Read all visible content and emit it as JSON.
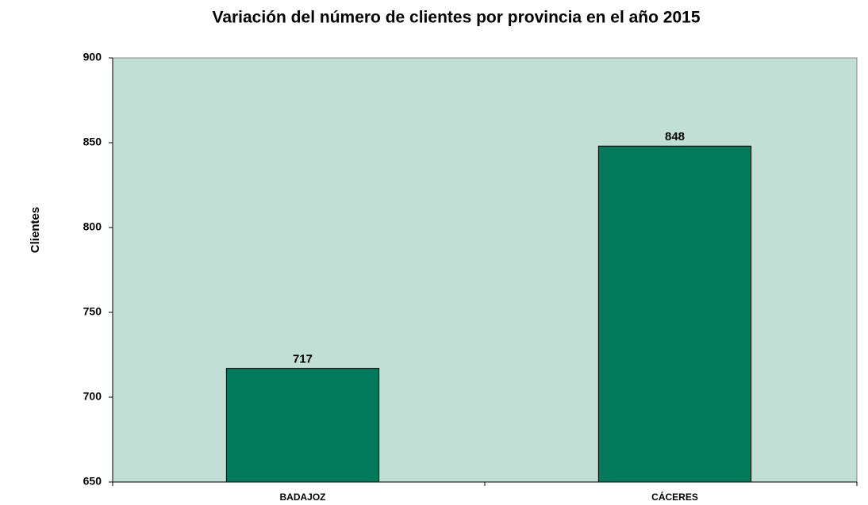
{
  "chart_data": {
    "type": "bar",
    "title": "Variación del número de clientes por provincia en el año 2015",
    "ylabel": "Clientes",
    "categories": [
      "BADAJOZ",
      "CÁCERES"
    ],
    "values": [
      717,
      848
    ],
    "color": "#007a5a",
    "ylim": [
      650,
      900
    ],
    "yticks": [
      650,
      700,
      750,
      800,
      850,
      900
    ],
    "grid": false
  }
}
